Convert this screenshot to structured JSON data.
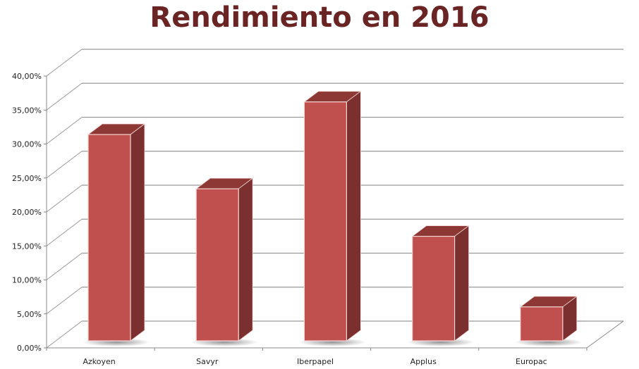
{
  "chart_data": {
    "type": "bar",
    "title": "Rendimiento en 2016",
    "categories": [
      "Azkoyen",
      "Savyr",
      "Iberpapel",
      "Applus",
      "Europac"
    ],
    "values": [
      30.4,
      22.4,
      35.2,
      15.4,
      5.0
    ],
    "value_unit": "%",
    "ylim": [
      0,
      40
    ],
    "yticks": [
      "0,00%",
      "5,00%",
      "10,00%",
      "15,00%",
      "20,00%",
      "25,00%",
      "30,00%",
      "35,00%",
      "40,00%"
    ],
    "xlabel": "",
    "ylabel": "",
    "grid": true,
    "legend": "none",
    "style": "3d-column",
    "colors": {
      "front": "#c0504d",
      "side": "#7b2f2f",
      "top": "#8e3836",
      "title": "#6b2424"
    }
  }
}
